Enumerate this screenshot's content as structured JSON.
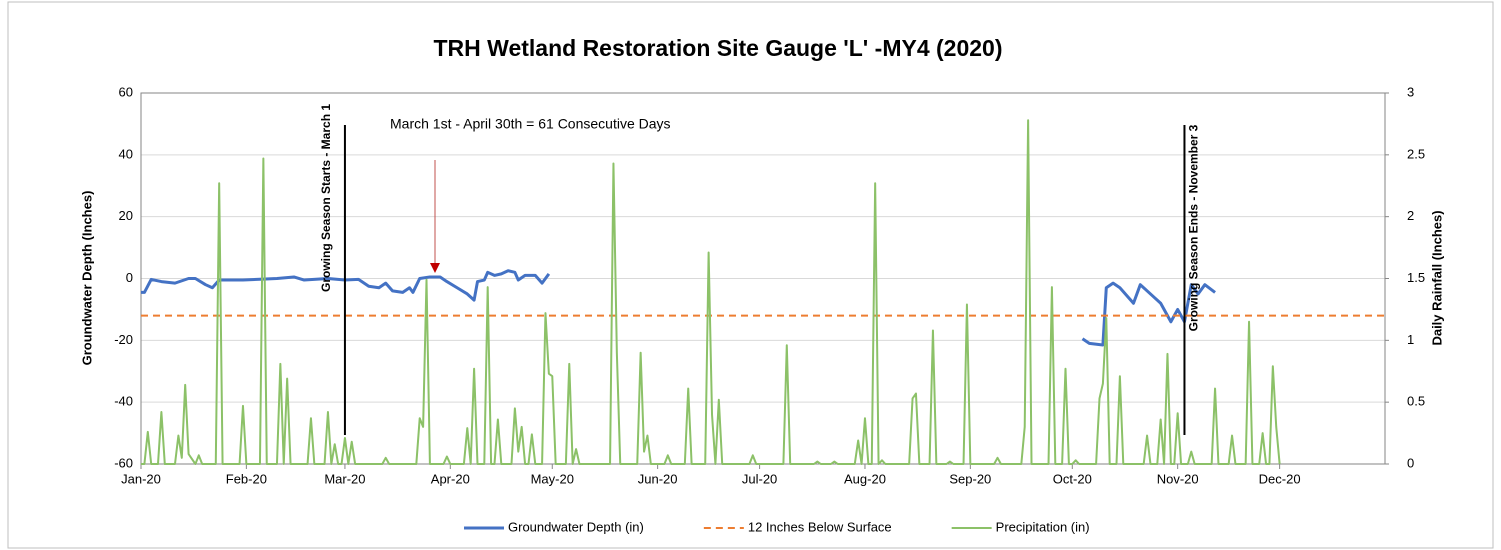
{
  "chart_data": {
    "type": "line",
    "title": "TRH Wetland Restoration Site Gauge 'L' -MY4 (2020)",
    "y_label": "Groundwater Depth (Inches)",
    "y2_label": "Daily Rainfall (Inches)",
    "xlim": [
      0,
      366
    ],
    "xticks": [
      {
        "value": 0,
        "label": "Jan-20"
      },
      {
        "value": 31,
        "label": "Feb-20"
      },
      {
        "value": 60,
        "label": "Mar-20"
      },
      {
        "value": 91,
        "label": "Apr-20"
      },
      {
        "value": 121,
        "label": "May-20"
      },
      {
        "value": 152,
        "label": "Jun-20"
      },
      {
        "value": 182,
        "label": "Jul-20"
      },
      {
        "value": 213,
        "label": "Aug-20"
      },
      {
        "value": 244,
        "label": "Sep-20"
      },
      {
        "value": 274,
        "label": "Oct-20"
      },
      {
        "value": 305,
        "label": "Nov-20"
      },
      {
        "value": 335,
        "label": "Dec-20"
      }
    ],
    "ylim": [
      -60,
      60
    ],
    "yticks": [
      -60,
      -40,
      -20,
      0,
      20,
      40,
      60
    ],
    "y2lim": [
      0,
      3
    ],
    "y2ticks": [
      0,
      0.5,
      1,
      1.5,
      2,
      2.5,
      3
    ],
    "grid": true,
    "legend": "bottom",
    "series": [
      {
        "name": "Groundwater Depth (in)",
        "color": "#4472c4",
        "width": 3,
        "x": [
          0,
          1,
          3,
          6,
          10,
          14,
          16,
          19,
          21,
          23,
          30,
          40,
          45,
          48,
          55,
          60,
          64,
          67,
          70,
          72,
          74,
          77,
          79,
          80,
          82,
          85,
          88,
          90,
          93,
          96,
          98,
          99,
          101,
          102,
          104,
          106,
          108,
          110,
          111,
          113,
          116,
          118,
          120,
          200,
          277,
          279,
          283,
          284,
          286,
          288,
          292,
          294,
          298,
          300,
          303,
          305,
          307,
          309,
          311,
          313,
          316
        ],
        "values": [
          -4.5,
          -4.5,
          -0.3,
          -1,
          -1.5,
          0,
          0,
          -2,
          -3,
          -0.5,
          -0.5,
          0,
          0.5,
          -0.5,
          0,
          -0.5,
          -0.3,
          -2.5,
          -3,
          -1.5,
          -4,
          -4.5,
          -3,
          -4.5,
          0,
          0.5,
          0.5,
          -1,
          -3,
          -5,
          -7,
          -1,
          -0.5,
          2,
          1,
          1.5,
          2.5,
          2,
          -0.5,
          1,
          1,
          -1.5,
          1.5,
          null,
          -19.5,
          -21,
          -21.5,
          -3,
          -1.5,
          -3,
          -8,
          -2,
          -6,
          -8,
          -14,
          -10,
          -14,
          -2,
          -5,
          -2,
          -4.5
        ]
      },
      {
        "name": "12 Inches Below Surface",
        "color": "#ed7d31",
        "width": 2,
        "dash": "7 5",
        "x": [
          0,
          366
        ],
        "values": [
          -12,
          -12
        ]
      },
      {
        "name": "Precipitation (in)",
        "color": "#8cc168",
        "width": 2,
        "axis": "y2",
        "x": [
          0,
          1,
          2,
          3,
          5,
          6,
          7,
          10,
          11,
          12,
          13,
          14,
          16,
          17,
          18,
          22,
          23,
          24,
          29,
          30,
          31,
          35,
          36,
          37,
          40,
          41,
          42,
          43,
          44,
          49,
          50,
          51,
          54,
          55,
          56,
          57,
          58,
          59,
          60,
          61,
          62,
          63,
          71,
          72,
          73,
          81,
          82,
          83,
          84,
          85,
          89,
          90,
          91,
          95,
          96,
          97,
          98,
          99,
          101,
          102,
          103,
          104,
          105,
          106,
          109,
          110,
          111,
          112,
          113,
          114,
          115,
          116,
          118,
          119,
          120,
          121,
          122,
          125,
          126,
          127,
          128,
          129,
          138,
          139,
          140,
          141,
          146,
          147,
          148,
          149,
          150,
          154,
          155,
          156,
          160,
          161,
          162,
          166,
          167,
          168,
          169,
          170,
          171,
          179,
          180,
          181,
          189,
          190,
          191,
          198,
          199,
          200,
          203,
          204,
          205,
          210,
          211,
          212,
          213,
          214,
          215,
          216,
          217,
          218,
          219,
          226,
          227,
          228,
          229,
          232,
          233,
          234,
          237,
          238,
          239,
          242,
          243,
          244,
          251,
          252,
          253,
          259,
          260,
          261,
          262,
          267,
          268,
          269,
          271,
          272,
          273,
          274,
          275,
          276,
          281,
          282,
          283,
          284,
          285,
          287,
          288,
          289,
          295,
          296,
          297,
          299,
          300,
          301,
          302,
          303,
          304,
          305,
          306,
          308,
          309,
          310,
          315,
          316,
          317,
          320,
          321,
          322,
          325,
          326,
          327,
          329,
          330,
          331,
          332,
          333,
          334,
          335
        ],
        "values": [
          0,
          0,
          0.26,
          0,
          0,
          0.42,
          0,
          0,
          0.23,
          0.05,
          0.64,
          0.08,
          0,
          0.07,
          0,
          0,
          2.27,
          0,
          0,
          0.47,
          0,
          0,
          2.47,
          0,
          0,
          0.81,
          0,
          0.69,
          0,
          0,
          0.37,
          0,
          0,
          0.42,
          0,
          0.16,
          0,
          0,
          0.21,
          0,
          0.18,
          0,
          0,
          0.05,
          0,
          0,
          0.37,
          0.3,
          1.49,
          0,
          0,
          0.06,
          0,
          0,
          0.29,
          0,
          0.77,
          0,
          0,
          1.43,
          0,
          0,
          0.36,
          0,
          0,
          0.45,
          0.1,
          0.3,
          0,
          0,
          0.24,
          0,
          0,
          1.22,
          0.73,
          0.71,
          0,
          0,
          0.81,
          0,
          0.12,
          0,
          0,
          2.43,
          0.9,
          0,
          0,
          0.9,
          0.1,
          0.23,
          0,
          0,
          0.07,
          0,
          0,
          0.61,
          0,
          0,
          1.71,
          0.4,
          0,
          0.52,
          0,
          0,
          0.07,
          0,
          0,
          0.96,
          0,
          0,
          0.02,
          0,
          0,
          0.02,
          0,
          0,
          0.19,
          0,
          0.37,
          0,
          0,
          2.27,
          0,
          0.03,
          0,
          0,
          0.53,
          0.57,
          0,
          0,
          1.08,
          0,
          0,
          0.02,
          0,
          0,
          1.29,
          0,
          0,
          0.05,
          0,
          0,
          0.3,
          2.78,
          0,
          0,
          1.43,
          0,
          0,
          0.77,
          0,
          0,
          0.03,
          0,
          0,
          0.53,
          0.65,
          1.18,
          0,
          0,
          0.71,
          0,
          0,
          0.23,
          0,
          0,
          0.36,
          0,
          0.89,
          0,
          0,
          0.41,
          0,
          0,
          0.1,
          0,
          0,
          0.61,
          0,
          0,
          0.23,
          0,
          0,
          1.15,
          0,
          0,
          0.25,
          0,
          0,
          0.79,
          0.3,
          0
        ]
      }
    ],
    "annotations": [
      {
        "text": "Growing Season Starts - March 1",
        "x": 60
      },
      {
        "text": "Growing Season Ends - November 3",
        "x": 307
      },
      {
        "text": "March 1st - April 30th = 61 Consecutive Days"
      }
    ]
  }
}
